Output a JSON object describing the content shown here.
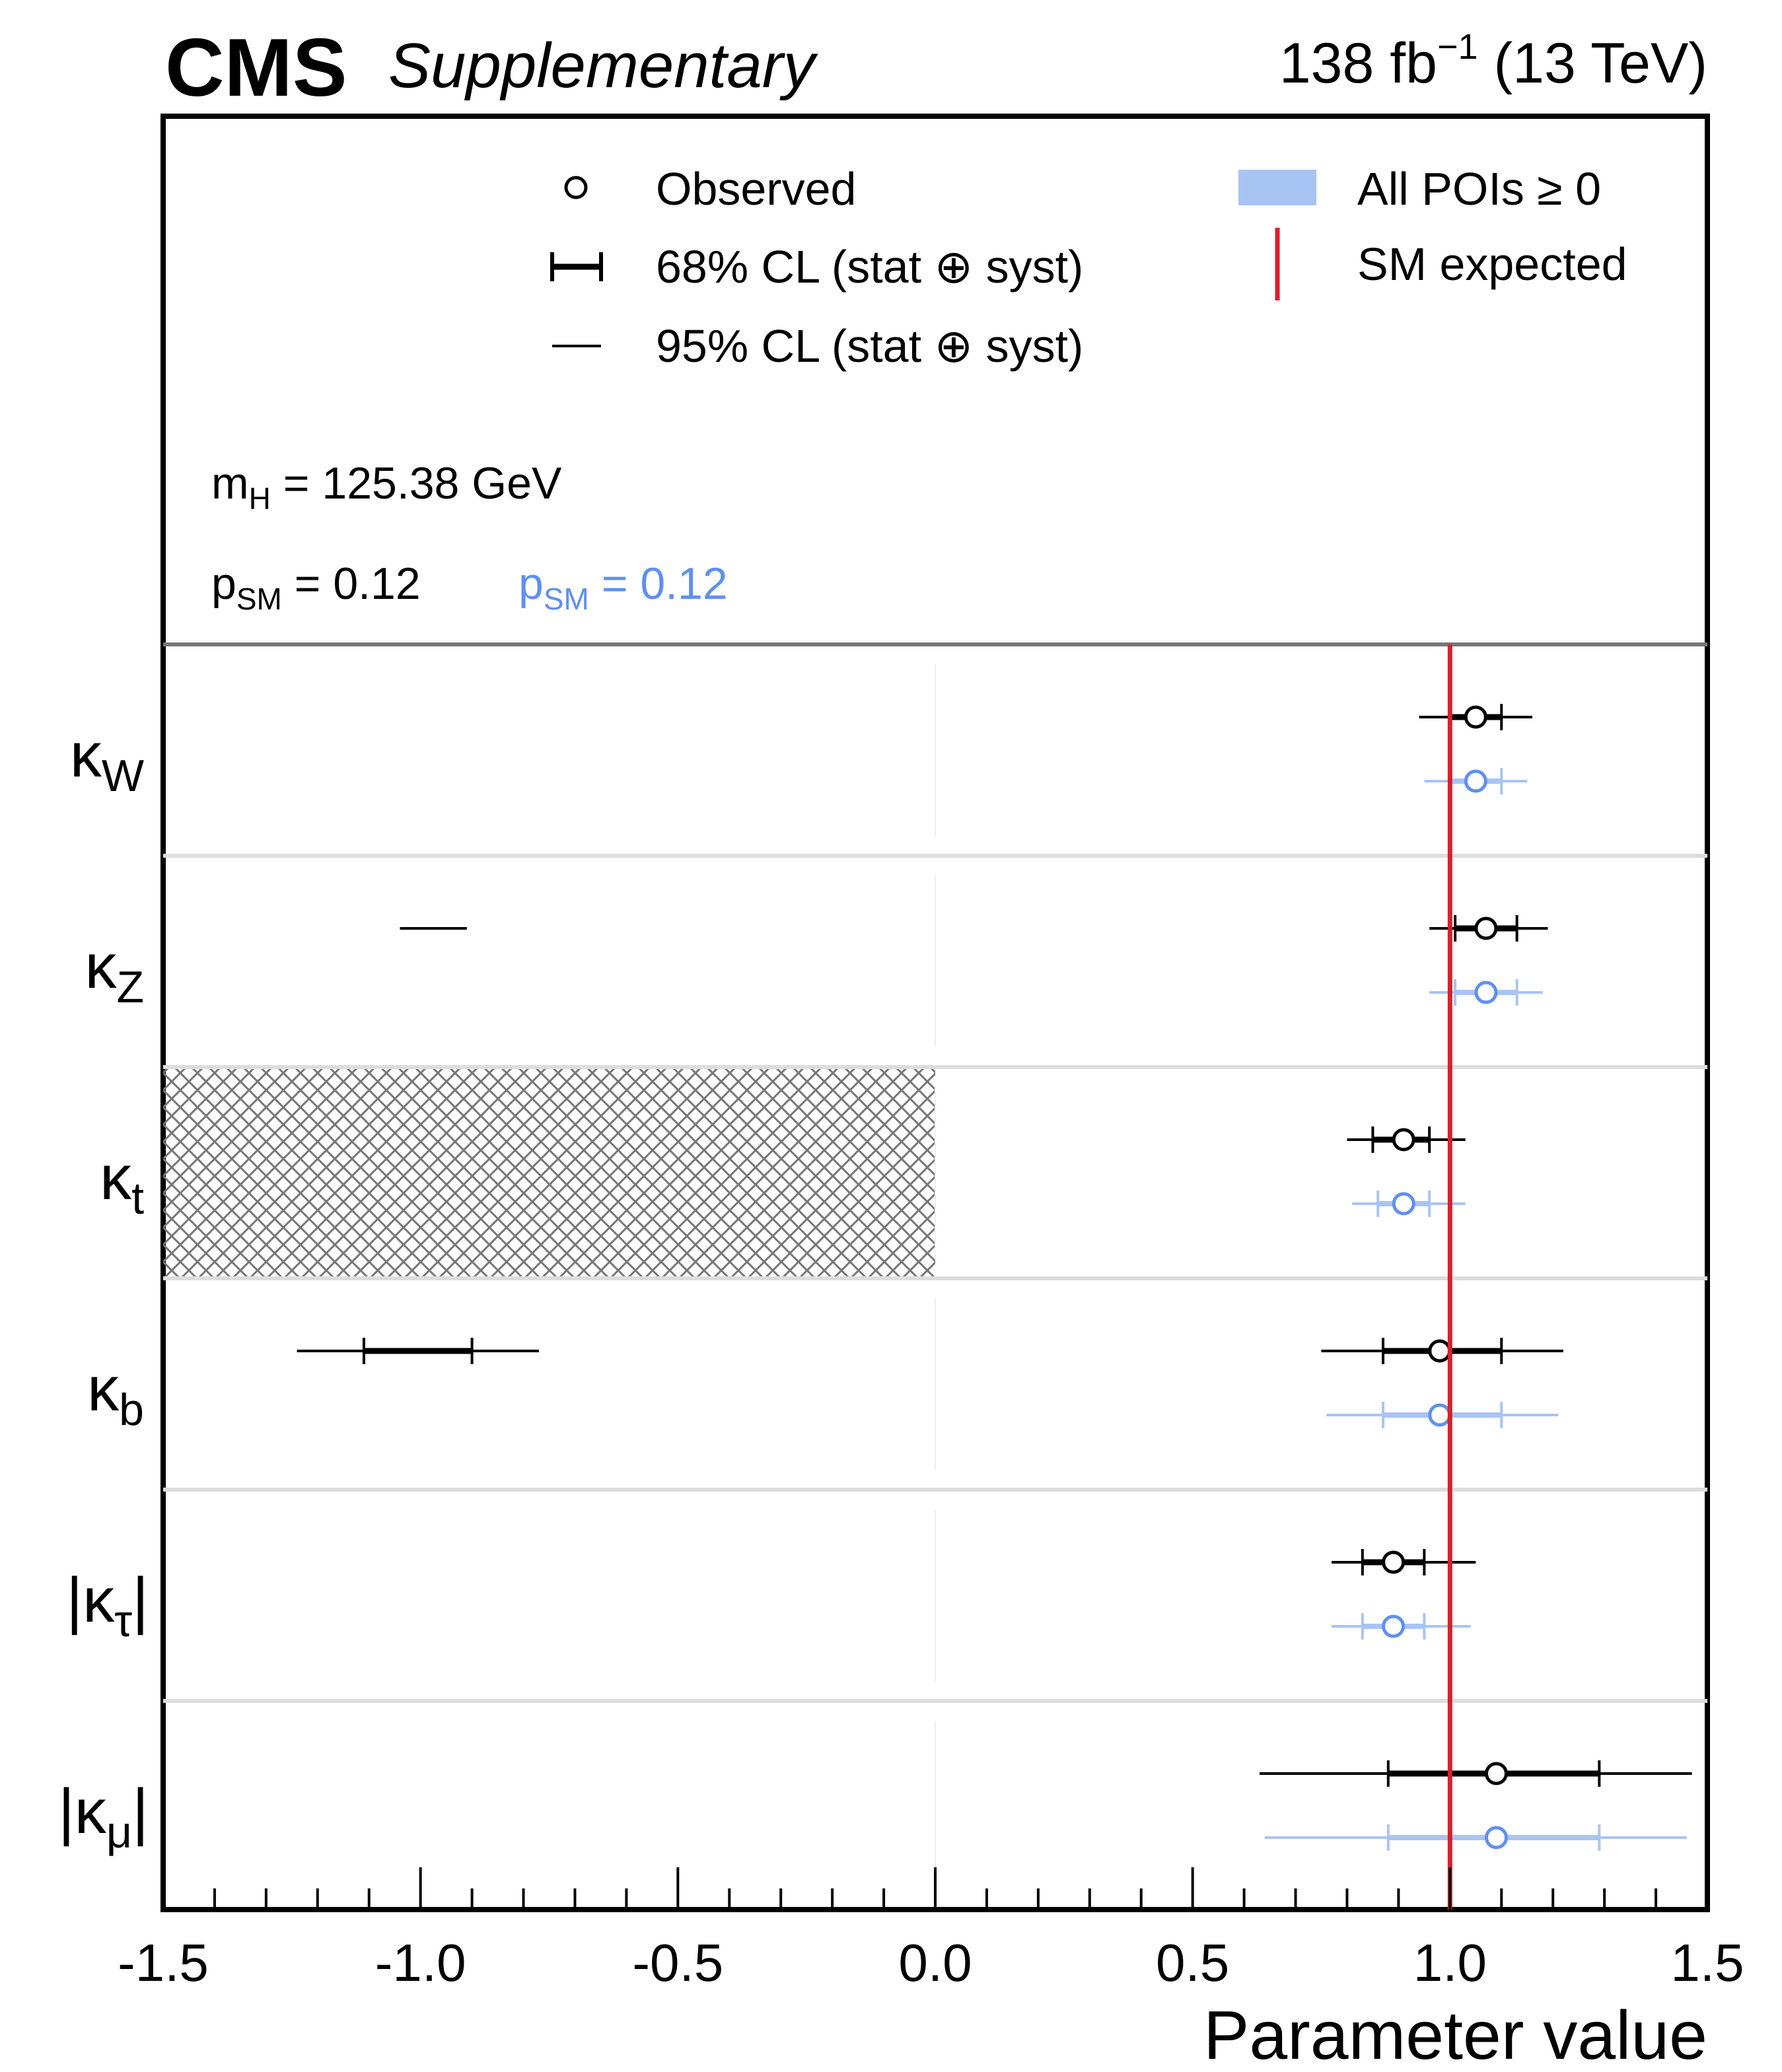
{
  "header": {
    "experiment": "CMS",
    "status": "Supplementary",
    "lumi": "138 fb",
    "lumi_exp": "−1",
    "energy": "(13 TeV)"
  },
  "legend": {
    "observed": "Observed",
    "cl68": "68% CL (stat ⊕ syst)",
    "cl95": "95% CL (stat ⊕ syst)",
    "all_pois": "All POIs ≥ 0",
    "sm_expected": "SM expected"
  },
  "info": {
    "mh_sym": "m",
    "mh_sub": "H",
    "mh_val": " = 125.38 GeV",
    "psm_sym": "p",
    "psm_sub": "SM",
    "psm_val": " = 0.12",
    "psm2_sym": "p",
    "psm2_sub": "SM",
    "psm2_val": " = 0.12"
  },
  "colors": {
    "observed": "#000000",
    "all_pois": "#5f8ff0",
    "all_pois_band": "#a8c4f5",
    "sm_line": "#d8202e",
    "hatch": "#777777"
  },
  "chart_data": {
    "type": "scatter",
    "xlabel": "Parameter value",
    "xlim": [
      -1.5,
      1.5
    ],
    "xticks": [
      "-1.5",
      "-1.0",
      "-0.5",
      "0.0",
      "0.5",
      "1.0",
      "1.5"
    ],
    "sm_value": 1.0,
    "parameters": [
      {
        "sym": "κ",
        "sub": "W",
        "abs": false,
        "observed": {
          "value": 1.05,
          "cl68": [
            1.0,
            1.1
          ],
          "cl95": [
            0.94,
            1.16
          ]
        },
        "all_pois": {
          "value": 1.05,
          "cl68": [
            1.0,
            1.1
          ],
          "cl95": [
            0.95,
            1.15
          ]
        },
        "extra_intervals": []
      },
      {
        "sym": "κ",
        "sub": "Z",
        "abs": false,
        "observed": {
          "value": 1.07,
          "cl68": [
            1.01,
            1.13
          ],
          "cl95": [
            0.96,
            1.19
          ]
        },
        "all_pois": {
          "value": 1.07,
          "cl68": [
            1.01,
            1.13
          ],
          "cl95": [
            0.96,
            1.18
          ]
        },
        "extra_intervals": [
          {
            "cl95": [
              -1.04,
              -0.91
            ]
          }
        ]
      },
      {
        "sym": "κ",
        "sub": "t",
        "abs": false,
        "observed": {
          "value": 0.91,
          "cl68": [
            0.85,
            0.96
          ],
          "cl95": [
            0.8,
            1.03
          ]
        },
        "all_pois": {
          "value": 0.91,
          "cl68": [
            0.86,
            0.96
          ],
          "cl95": [
            0.81,
            1.03
          ]
        },
        "extra_intervals": [],
        "excluded_region": [
          -1.5,
          0.0
        ]
      },
      {
        "sym": "κ",
        "sub": "b",
        "abs": false,
        "observed": {
          "value": 0.98,
          "cl68": [
            0.87,
            1.1
          ],
          "cl95": [
            0.75,
            1.22
          ]
        },
        "all_pois": {
          "value": 0.98,
          "cl68": [
            0.87,
            1.1
          ],
          "cl95": [
            0.76,
            1.21
          ]
        },
        "extra_intervals": [
          {
            "cl68": [
              -1.11,
              -0.9
            ],
            "cl95": [
              -1.24,
              -0.77
            ]
          }
        ]
      },
      {
        "sym": "κ",
        "sub": "τ",
        "abs": true,
        "observed": {
          "value": 0.89,
          "cl68": [
            0.83,
            0.95
          ],
          "cl95": [
            0.77,
            1.05
          ]
        },
        "all_pois": {
          "value": 0.89,
          "cl68": [
            0.83,
            0.95
          ],
          "cl95": [
            0.77,
            1.04
          ]
        },
        "extra_intervals": []
      },
      {
        "sym": "κ",
        "sub": "μ",
        "abs": true,
        "observed": {
          "value": 1.09,
          "cl68": [
            0.88,
            1.29
          ],
          "cl95": [
            0.63,
            1.47
          ]
        },
        "all_pois": {
          "value": 1.09,
          "cl68": [
            0.88,
            1.29
          ],
          "cl95": [
            0.64,
            1.46
          ]
        },
        "extra_intervals": []
      }
    ]
  }
}
